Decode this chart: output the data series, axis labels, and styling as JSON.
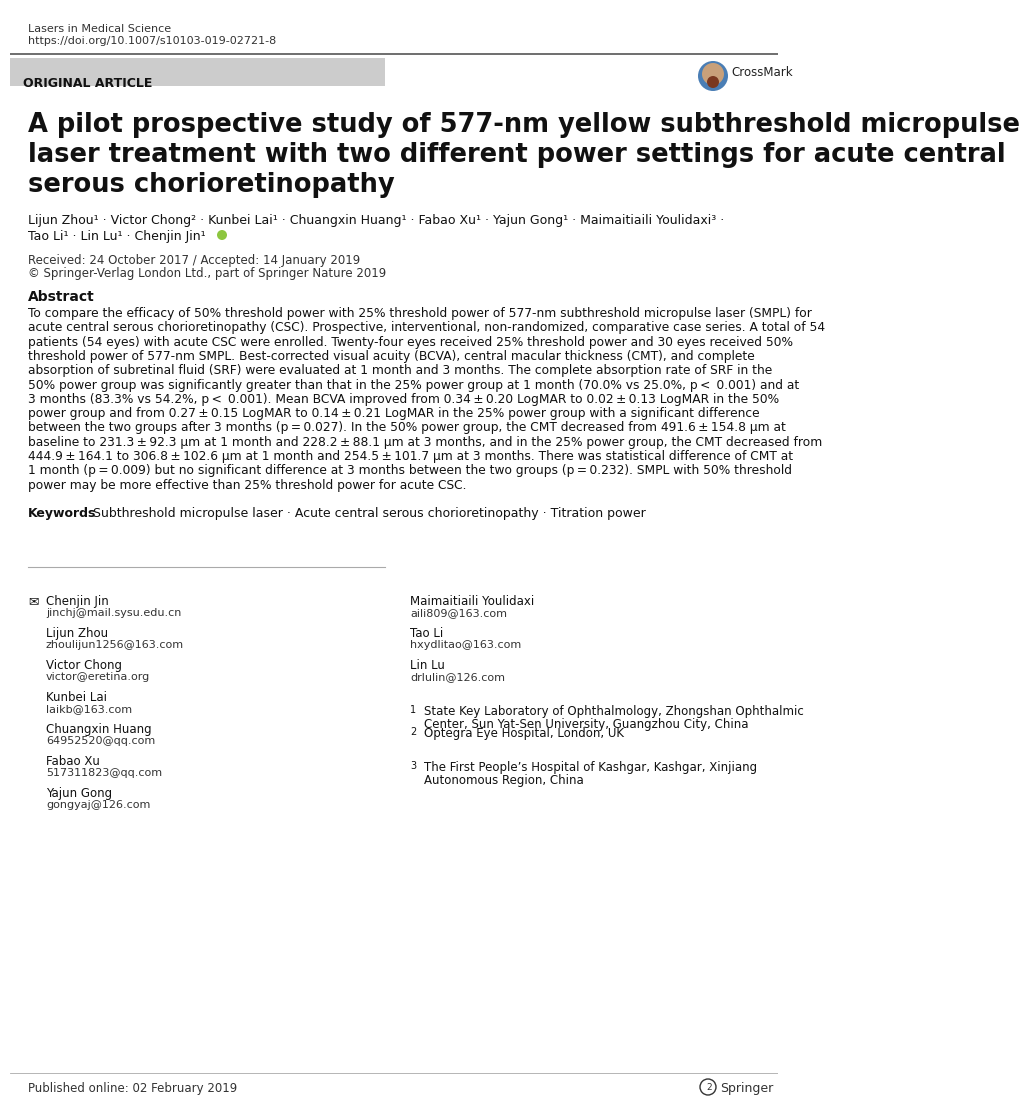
{
  "journal_name": "Lasers in Medical Science",
  "doi": "https://doi.org/10.1007/s10103-019-02721-8",
  "article_type": "ORIGINAL ARTICLE",
  "title_line1": "A pilot prospective study of 577-nm yellow subthreshold micropulse",
  "title_line2": "laser treatment with two different power settings for acute central",
  "title_line3": "serous chorioretinopathy",
  "authors_line1": "Lijun Zhou¹ · Victor Chong² · Kunbei Lai¹ · Chuangxin Huang¹ · Fabao Xu¹ · Yajun Gong¹ · Maimaitiaili Youlidaxi³ ·",
  "authors_line2_pre": "Tao Li¹ · Lin Lu¹ · Chenjin Jin¹ ",
  "received": "Received: 24 October 2017 / Accepted: 14 January 2019",
  "copyright": "© Springer-Verlag London Ltd., part of Springer Nature 2019",
  "abstract_title": "Abstract",
  "abstract_lines": [
    "To compare the efficacy of 50% threshold power with 25% threshold power of 577-nm subthreshold micropulse laser (SMPL) for",
    "acute central serous chorioretinopathy (CSC). Prospective, interventional, non-randomized, comparative case series. A total of 54",
    "patients (54 eyes) with acute CSC were enrolled. Twenty-four eyes received 25% threshold power and 30 eyes received 50%",
    "threshold power of 577-nm SMPL. Best-corrected visual acuity (BCVA), central macular thickness (CMT), and complete",
    "absorption of subretinal fluid (SRF) were evaluated at 1 month and 3 months. The complete absorption rate of SRF in the",
    "50% power group was significantly greater than that in the 25% power group at 1 month (70.0% vs 25.0%, p < 0.001) and at",
    "3 months (83.3% vs 54.2%, p < 0.001). Mean BCVA improved from 0.34 ± 0.20 LogMAR to 0.02 ± 0.13 LogMAR in the 50%",
    "power group and from 0.27 ± 0.15 LogMAR to 0.14 ± 0.21 LogMAR in the 25% power group with a significant difference",
    "between the two groups after 3 months (p = 0.027). In the 50% power group, the CMT decreased from 491.6 ± 154.8 μm at",
    "baseline to 231.3 ± 92.3 μm at 1 month and 228.2 ± 88.1 μm at 3 months, and in the 25% power group, the CMT decreased from",
    "444.9 ± 164.1 to 306.8 ± 102.6 μm at 1 month and 254.5 ± 101.7 μm at 3 months. There was statistical difference of CMT at",
    "1 month (p = 0.009) but no significant difference at 3 months between the two groups (p = 0.232). SMPL with 50% threshold",
    "power may be more effective than 25% threshold power for acute CSC."
  ],
  "keywords_label": "Keywords",
  "keywords_text": "Subthreshold micropulse laser · Acute central serous chorioretinopathy · Titration power",
  "contacts_left": [
    [
      "Chenjin Jin",
      "jinchj@mail.sysu.edu.cn"
    ],
    [
      "Lijun Zhou",
      "zhoulijun1256@163.com"
    ],
    [
      "Victor Chong",
      "victor@eretina.org"
    ],
    [
      "Kunbei Lai",
      "laikb@163.com"
    ],
    [
      "Chuangxin Huang",
      "64952520@qq.com"
    ],
    [
      "Fabao Xu",
      "517311823@qq.com"
    ],
    [
      "Yajun Gong",
      "gongyaj@126.com"
    ]
  ],
  "contacts_right": [
    [
      "Maimaitiaili Youlidaxi",
      "aili809@163.com"
    ],
    [
      "Tao Li",
      "hxydlitao@163.com"
    ],
    [
      "Lin Lu",
      "drlulin@126.com"
    ]
  ],
  "affiliations": [
    [
      "1",
      "State Key Laboratory of Ophthalmology, Zhongshan Ophthalmic",
      "Center, Sun Yat-Sen University, Guangzhou City, China"
    ],
    [
      "2",
      "Optegra Eye Hospital, London, UK",
      ""
    ],
    [
      "3",
      "The First People’s Hospital of Kashgar, Kashgar, Xinjiang",
      "Autonomous Region, China"
    ]
  ],
  "published": "Published online: 02 February 2019",
  "bg_color": "#ffffff",
  "header_bar_color": "#cccccc",
  "rule_color": "#aaaaaa",
  "text_dark": "#111111",
  "text_mid": "#222222",
  "text_small": "#333333"
}
